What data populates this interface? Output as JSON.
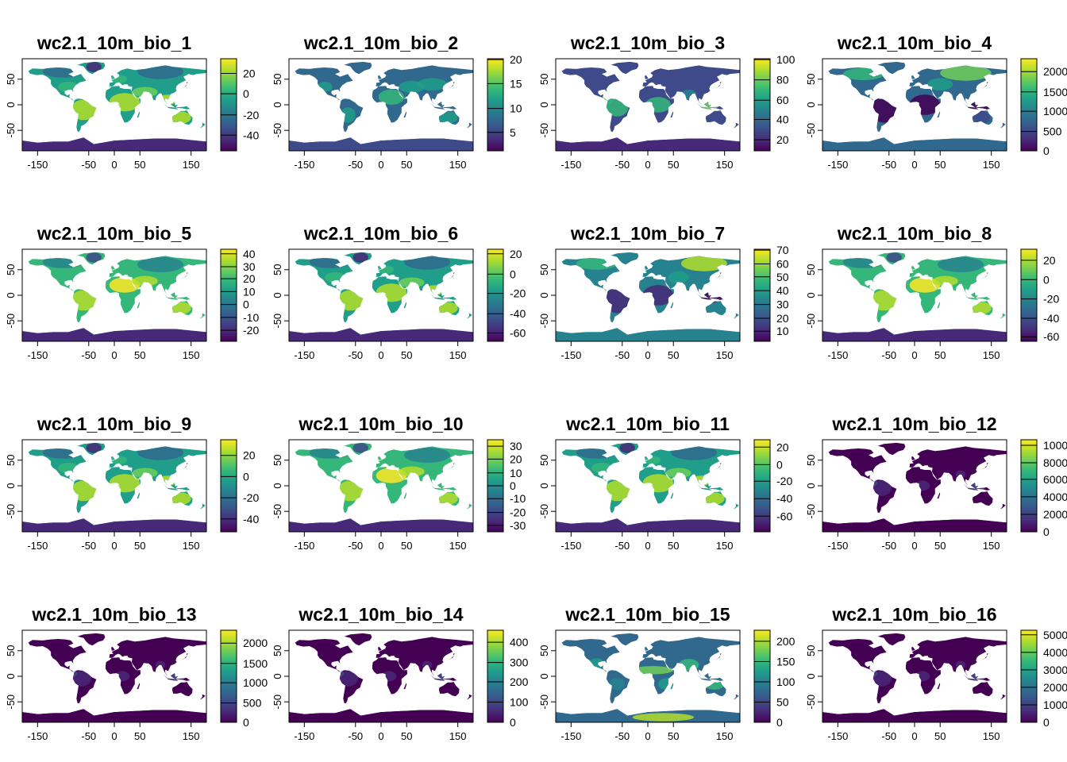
{
  "figure": {
    "axis": {
      "x_ticks": [
        -150,
        -50,
        0,
        50,
        150
      ],
      "y_ticks": [
        50,
        0,
        -50
      ],
      "x_range": [
        -180,
        180
      ],
      "y_range": [
        -90,
        90
      ]
    },
    "colors": {
      "viridis": [
        "#440154",
        "#482878",
        "#3E4A89",
        "#31688E",
        "#26828E",
        "#1F9E89",
        "#35B779",
        "#6ECE58",
        "#B4DE2C",
        "#FDE725"
      ]
    },
    "panels": [
      {
        "title": "wc2.1_10m_bio_1",
        "legend_ticks": [
          "20",
          "0",
          "-20",
          "-40"
        ],
        "legend_tick_fracs": [
          0.84,
          0.62,
          0.39,
          0.17
        ],
        "pattern": "temp"
      },
      {
        "title": "wc2.1_10m_bio_2",
        "legend_ticks": [
          "20",
          "15",
          "10",
          "5"
        ],
        "legend_tick_fracs": [
          0.99,
          0.73,
          0.46,
          0.2
        ],
        "pattern": "range"
      },
      {
        "title": "wc2.1_10m_bio_3",
        "legend_ticks": [
          "100",
          "80",
          "60",
          "40",
          "20"
        ],
        "legend_tick_fracs": [
          0.99,
          0.77,
          0.55,
          0.34,
          0.12
        ],
        "pattern": "isotherm"
      },
      {
        "title": "wc2.1_10m_bio_4",
        "legend_ticks": [
          "2000",
          "1500",
          "1000",
          "500",
          "0"
        ],
        "legend_tick_fracs": [
          0.86,
          0.64,
          0.43,
          0.21,
          0.0
        ],
        "pattern": "seasonality"
      },
      {
        "title": "wc2.1_10m_bio_5",
        "legend_ticks": [
          "40",
          "30",
          "20",
          "10",
          "0",
          "-10",
          "-20"
        ],
        "legend_tick_fracs": [
          0.95,
          0.81,
          0.68,
          0.54,
          0.4,
          0.26,
          0.12
        ],
        "pattern": "hot"
      },
      {
        "title": "wc2.1_10m_bio_6",
        "legend_ticks": [
          "20",
          "0",
          "-20",
          "-40",
          "-60"
        ],
        "legend_tick_fracs": [
          0.95,
          0.73,
          0.52,
          0.3,
          0.09
        ],
        "pattern": "temp"
      },
      {
        "title": "wc2.1_10m_bio_7",
        "legend_ticks": [
          "70",
          "60",
          "50",
          "40",
          "30",
          "20",
          "10"
        ],
        "legend_tick_fracs": [
          0.99,
          0.84,
          0.7,
          0.55,
          0.4,
          0.25,
          0.11
        ],
        "pattern": "annualrange"
      },
      {
        "title": "wc2.1_10m_bio_8",
        "legend_ticks": [
          "20",
          "0",
          "-20",
          "-40",
          "-60"
        ],
        "legend_tick_fracs": [
          0.88,
          0.67,
          0.46,
          0.25,
          0.05
        ],
        "pattern": "hot"
      },
      {
        "title": "wc2.1_10m_bio_9",
        "legend_ticks": [
          "20",
          "0",
          "-20",
          "-40"
        ],
        "legend_tick_fracs": [
          0.83,
          0.6,
          0.37,
          0.14
        ],
        "pattern": "temp"
      },
      {
        "title": "wc2.1_10m_bio_10",
        "legend_ticks": [
          "30",
          "20",
          "10",
          "0",
          "-10",
          "-20",
          "-30"
        ],
        "legend_tick_fracs": [
          0.93,
          0.79,
          0.64,
          0.5,
          0.36,
          0.21,
          0.07
        ],
        "pattern": "hot"
      },
      {
        "title": "wc2.1_10m_bio_11",
        "legend_ticks": [
          "20",
          "0",
          "-20",
          "-40",
          "-60"
        ],
        "legend_tick_fracs": [
          0.92,
          0.73,
          0.55,
          0.36,
          0.17
        ],
        "pattern": "temp"
      },
      {
        "title": "wc2.1_10m_bio_12",
        "legend_ticks": [
          "10000",
          "8000",
          "6000",
          "4000",
          "2000",
          "0"
        ],
        "legend_tick_fracs": [
          0.94,
          0.75,
          0.57,
          0.38,
          0.19,
          0.0
        ],
        "pattern": "precip"
      },
      {
        "title": "wc2.1_10m_bio_13",
        "legend_ticks": [
          "2000",
          "1500",
          "1000",
          "500",
          "0"
        ],
        "legend_tick_fracs": [
          0.86,
          0.64,
          0.43,
          0.21,
          0.0
        ],
        "pattern": "precip"
      },
      {
        "title": "wc2.1_10m_bio_14",
        "legend_ticks": [
          "400",
          "300",
          "200",
          "100",
          "0"
        ],
        "legend_tick_fracs": [
          0.87,
          0.65,
          0.44,
          0.22,
          0.0
        ],
        "pattern": "precip"
      },
      {
        "title": "wc2.1_10m_bio_15",
        "legend_ticks": [
          "200",
          "150",
          "100",
          "50",
          "0"
        ],
        "legend_tick_fracs": [
          0.88,
          0.66,
          0.44,
          0.22,
          0.0
        ],
        "pattern": "precipseason"
      },
      {
        "title": "wc2.1_10m_bio_16",
        "legend_ticks": [
          "5000",
          "4000",
          "3000",
          "2000",
          "1000",
          "0"
        ],
        "legend_tick_fracs": [
          0.95,
          0.76,
          0.57,
          0.38,
          0.19,
          0.0
        ],
        "pattern": "precip"
      }
    ]
  }
}
